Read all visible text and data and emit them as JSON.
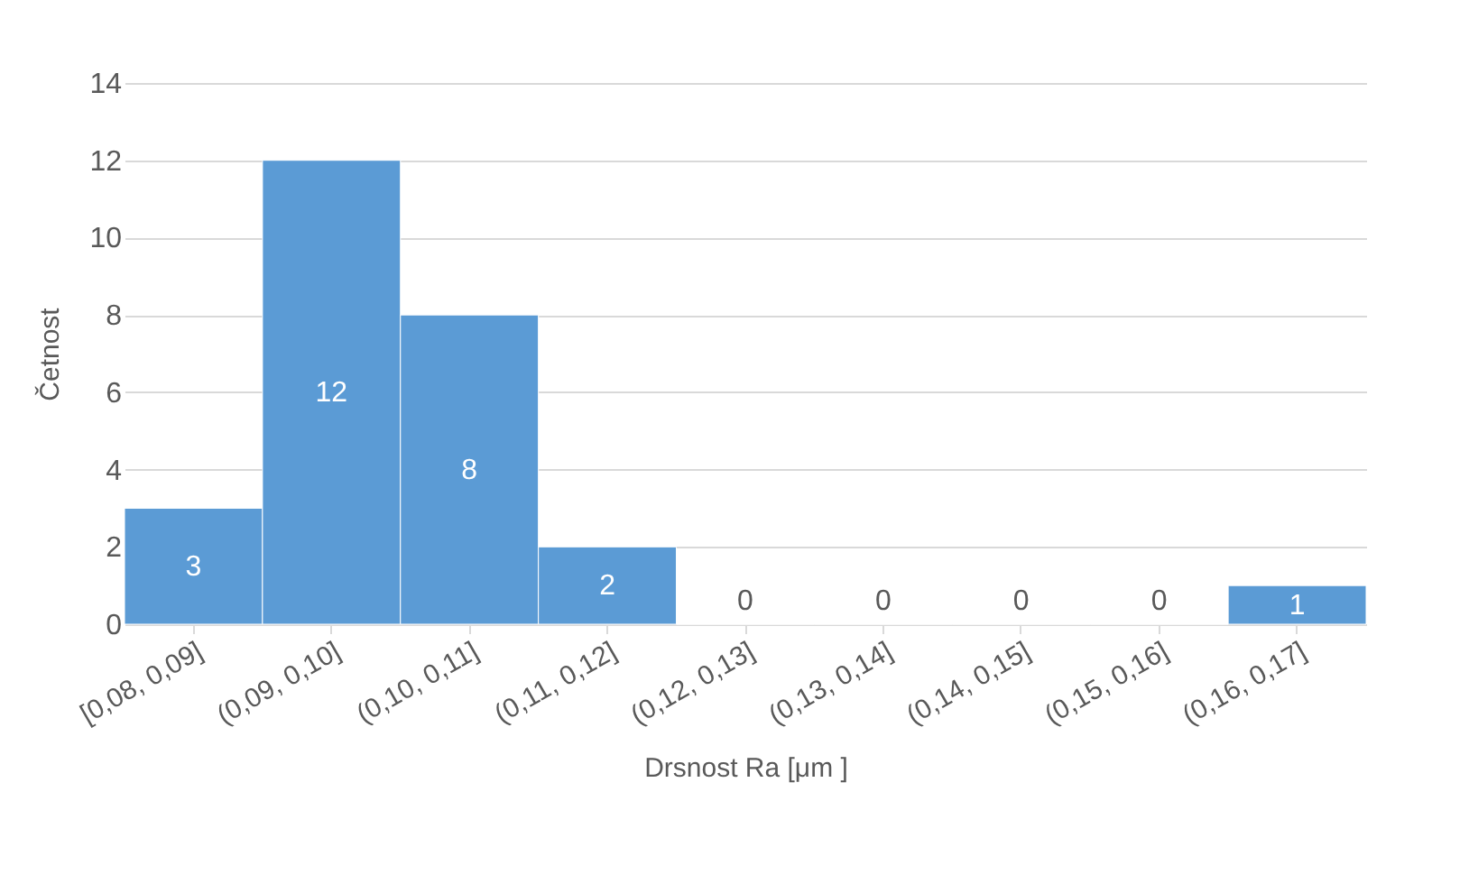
{
  "chart_data": {
    "type": "bar",
    "xlabel": "Drsnost Ra [μm ]",
    "ylabel": "Četnost",
    "categories": [
      "[0,08, 0,09]",
      "(0,09, 0,10]",
      "(0,10, 0,11]",
      "(0,11, 0,12]",
      "(0,12, 0,13]",
      "(0,13, 0,14]",
      "(0,14, 0,15]",
      "(0,15, 0,16]",
      "(0,16, 0,17]"
    ],
    "values": [
      3,
      12,
      8,
      2,
      0,
      0,
      0,
      0,
      1
    ],
    "color": "#5b9bd5",
    "ylim": [
      0,
      14
    ],
    "yticks": [
      0,
      2,
      4,
      6,
      8,
      10,
      12,
      14
    ],
    "grid": "y",
    "data_labels": true
  }
}
